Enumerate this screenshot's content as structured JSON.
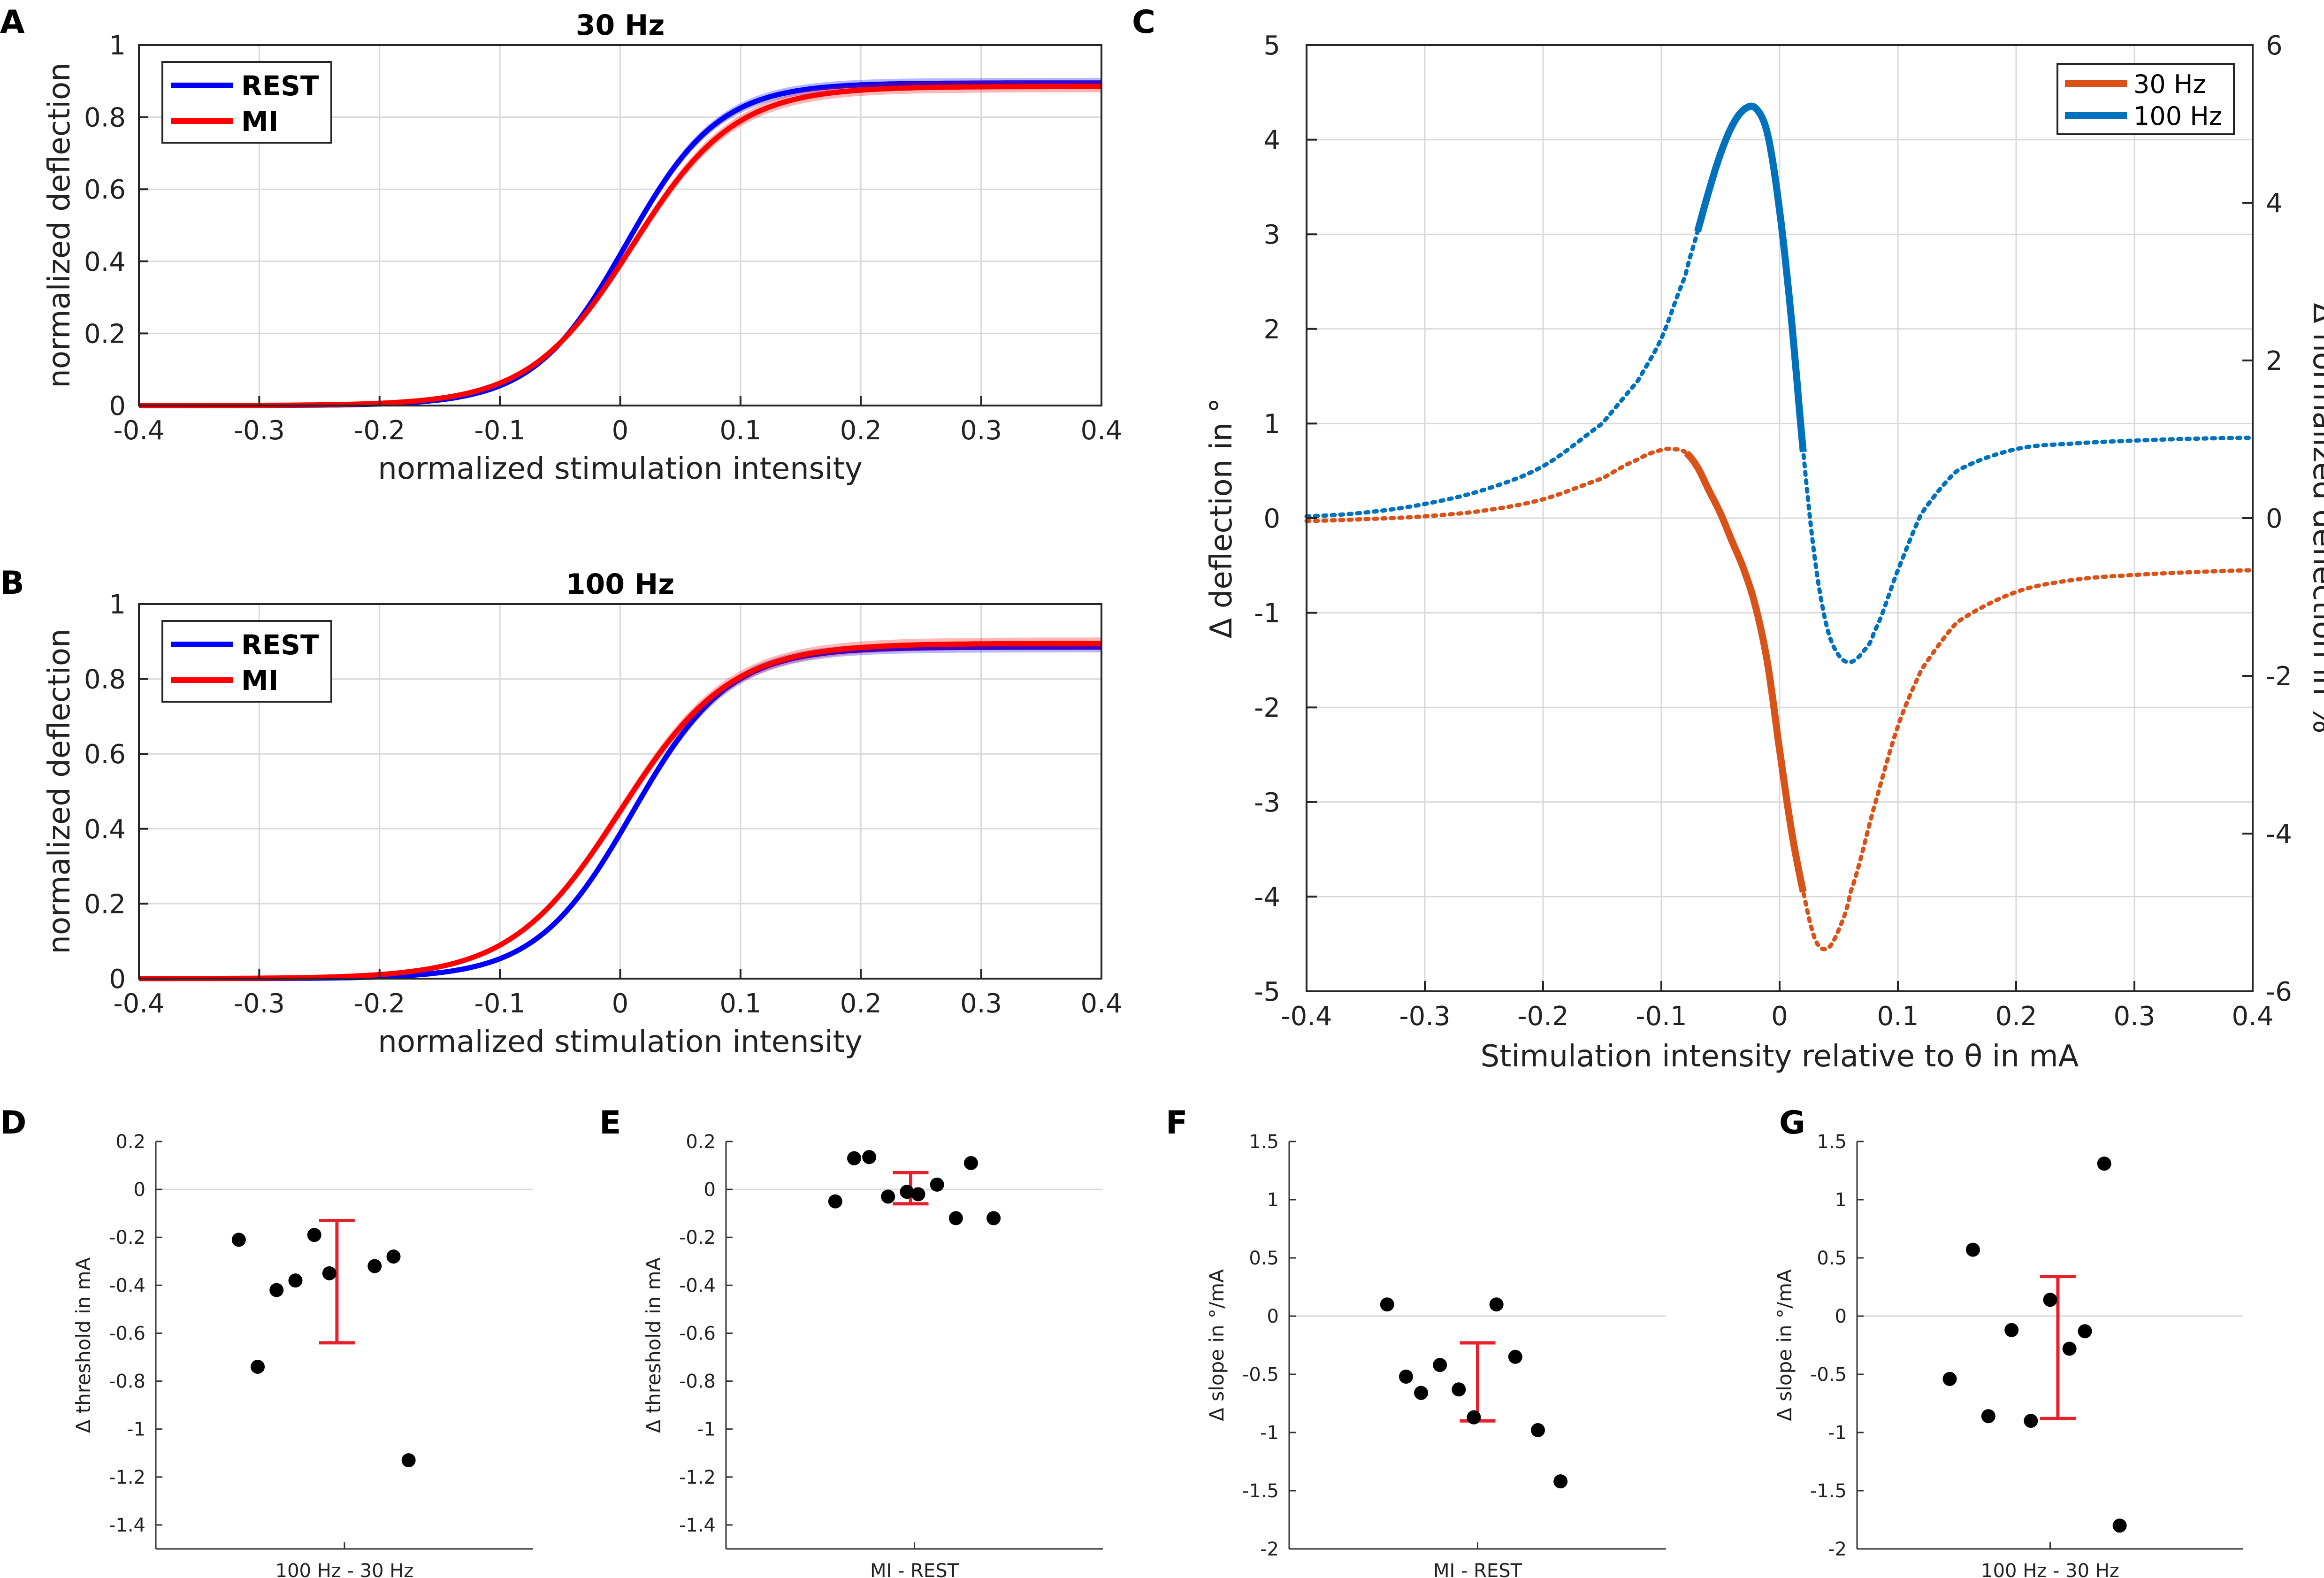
{
  "colors": {
    "rest": "#0000ff",
    "mi": "#ff0000",
    "hz30": "#d95319",
    "hz100": "#0072bd",
    "errorbar": "#e8202a",
    "dot": "#000000",
    "grid": "#d9d9d9"
  },
  "chart_data": [
    {
      "id": "A",
      "panel_label": "A",
      "type": "line",
      "title": "30 Hz",
      "xlabel": "normalized stimulation intensity",
      "ylabel": "normalized deflection",
      "xlim": [
        -0.4,
        0.4
      ],
      "ylim": [
        0,
        1
      ],
      "xticks": [
        -0.4,
        -0.3,
        -0.2,
        -0.1,
        0,
        0.1,
        0.2,
        0.3,
        0.4
      ],
      "xtick_labels": [
        "-0.4",
        "-0.3",
        "-0.2",
        "-0.1",
        "0",
        "0.1",
        "0.2",
        "0.3",
        "0.4"
      ],
      "yticks": [
        0,
        0.2,
        0.4,
        0.6,
        0.8,
        1
      ],
      "ytick_labels": [
        "0",
        "0.2",
        "0.4",
        "0.6",
        "0.8",
        "1"
      ],
      "legend": [
        "REST",
        "MI"
      ],
      "legend_position": "top-left",
      "series": [
        {
          "name": "REST",
          "color": "#0000ff",
          "model": "logistic",
          "top": 0.895,
          "midpoint": 0.005,
          "slope": 26.0,
          "band": 0.014
        },
        {
          "name": "MI",
          "color": "#ff0000",
          "model": "logistic",
          "top": 0.885,
          "midpoint": 0.01,
          "slope": 23.5,
          "band": 0.016
        }
      ]
    },
    {
      "id": "B",
      "panel_label": "B",
      "type": "line",
      "title": "100 Hz",
      "xlabel": "normalized stimulation intensity",
      "ylabel": "normalized deflection",
      "xlim": [
        -0.4,
        0.4
      ],
      "ylim": [
        0,
        1
      ],
      "xticks": [
        -0.4,
        -0.3,
        -0.2,
        -0.1,
        0,
        0.1,
        0.2,
        0.3,
        0.4
      ],
      "xtick_labels": [
        "-0.4",
        "-0.3",
        "-0.2",
        "-0.1",
        "0",
        "0.1",
        "0.2",
        "0.3",
        "0.4"
      ],
      "yticks": [
        0,
        0.2,
        0.4,
        0.6,
        0.8,
        1
      ],
      "ytick_labels": [
        "0",
        "0.2",
        "0.4",
        "0.6",
        "0.8",
        "1"
      ],
      "legend": [
        "REST",
        "MI"
      ],
      "legend_position": "top-left",
      "series": [
        {
          "name": "REST",
          "color": "#0000ff",
          "model": "logistic",
          "top": 0.885,
          "midpoint": 0.01,
          "slope": 25.0,
          "band": 0.014
        },
        {
          "name": "MI",
          "color": "#ff0000",
          "model": "logistic",
          "top": 0.895,
          "midpoint": 0.0,
          "slope": 22.0,
          "band": 0.016
        }
      ]
    },
    {
      "id": "C",
      "panel_label": "C",
      "type": "line",
      "xlabel": "Stimulation intensity relative to θ in mA",
      "ylabel": "Δ deflection in °",
      "ylabel_right": "Δ normalized deflection in %",
      "xlim": [
        -0.4,
        0.4
      ],
      "ylim": [
        -5,
        5
      ],
      "ylim_right": [
        -6,
        6
      ],
      "xticks": [
        -0.4,
        -0.3,
        -0.2,
        -0.1,
        0,
        0.1,
        0.2,
        0.3,
        0.4
      ],
      "xtick_labels": [
        "-0.4",
        "-0.3",
        "-0.2",
        "-0.1",
        "0",
        "0.1",
        "0.2",
        "0.3",
        "0.4"
      ],
      "yticks": [
        -5,
        -4,
        -3,
        -2,
        -1,
        0,
        1,
        2,
        3,
        4,
        5
      ],
      "ytick_labels": [
        "-5",
        "-4",
        "-3",
        "-2",
        "-1",
        "0",
        "1",
        "2",
        "3",
        "4",
        "5"
      ],
      "yticks_right": [
        -6,
        -4,
        -2,
        0,
        2,
        4,
        6
      ],
      "ytick_labels_right": [
        "-6",
        "-4",
        "-2",
        "0",
        "2",
        "4",
        "6"
      ],
      "legend": [
        "30 Hz",
        "100 Hz"
      ],
      "legend_position": "top-right",
      "series": [
        {
          "name": "30 Hz",
          "color": "#d95319",
          "x": [
            -0.4,
            -0.35,
            -0.3,
            -0.25,
            -0.2,
            -0.15,
            -0.12,
            -0.1,
            -0.09,
            -0.08,
            -0.07,
            -0.06,
            -0.05,
            -0.04,
            -0.03,
            -0.02,
            -0.01,
            0.0,
            0.01,
            0.02,
            0.03,
            0.04,
            0.05,
            0.06,
            0.08,
            0.1,
            0.12,
            0.15,
            0.2,
            0.25,
            0.3,
            0.35,
            0.4
          ],
          "y": [
            -0.03,
            -0.01,
            0.02,
            0.08,
            0.2,
            0.42,
            0.62,
            0.72,
            0.73,
            0.7,
            0.55,
            0.3,
            0.05,
            -0.25,
            -0.55,
            -0.95,
            -1.55,
            -2.45,
            -3.3,
            -3.95,
            -4.45,
            -4.55,
            -4.35,
            -3.95,
            -3.05,
            -2.2,
            -1.6,
            -1.1,
            -0.78,
            -0.65,
            -0.6,
            -0.57,
            -0.55
          ],
          "solid_range": [
            -0.08,
            0.02
          ]
        },
        {
          "name": "100 Hz",
          "color": "#0072bd",
          "x": [
            -0.4,
            -0.35,
            -0.3,
            -0.25,
            -0.2,
            -0.15,
            -0.12,
            -0.1,
            -0.08,
            -0.07,
            -0.06,
            -0.05,
            -0.04,
            -0.03,
            -0.02,
            -0.01,
            0.0,
            0.01,
            0.02,
            0.03,
            0.04,
            0.05,
            0.06,
            0.07,
            0.08,
            0.1,
            0.12,
            0.15,
            0.2,
            0.25,
            0.3,
            0.35,
            0.4
          ],
          "y": [
            0.02,
            0.06,
            0.15,
            0.3,
            0.55,
            1.0,
            1.45,
            1.9,
            2.55,
            3.0,
            3.45,
            3.85,
            4.15,
            4.32,
            4.33,
            4.05,
            3.25,
            2.1,
            0.7,
            -0.45,
            -1.15,
            -1.45,
            -1.52,
            -1.42,
            -1.2,
            -0.55,
            0.05,
            0.5,
            0.73,
            0.79,
            0.82,
            0.84,
            0.85
          ],
          "solid_range": [
            -0.07,
            0.02
          ]
        }
      ]
    },
    {
      "id": "D",
      "panel_label": "D",
      "type": "scatter",
      "ylabel": "Δ threshold in mA",
      "xtick_label": "100 Hz - 30 Hz",
      "ylim": [
        -1.5,
        0.2
      ],
      "yticks": [
        0.2,
        0,
        -0.2,
        -0.4,
        -0.6,
        -0.8,
        -1,
        -1.2,
        -1.4
      ],
      "ytick_labels": [
        "0.2",
        "0",
        "-0.2",
        "-0.4",
        "-0.6",
        "-0.8",
        "-1",
        "-1.2",
        "-1.4"
      ],
      "xrange": [
        0,
        1
      ],
      "zero_line": true,
      "points": [
        {
          "x": 0.22,
          "y": -0.21
        },
        {
          "x": 0.27,
          "y": -0.74
        },
        {
          "x": 0.32,
          "y": -0.42
        },
        {
          "x": 0.37,
          "y": -0.38
        },
        {
          "x": 0.42,
          "y": -0.19
        },
        {
          "x": 0.46,
          "y": -0.35
        },
        {
          "x": 0.58,
          "y": -0.32
        },
        {
          "x": 0.63,
          "y": -0.28
        },
        {
          "x": 0.67,
          "y": -1.13
        }
      ],
      "errorbar": {
        "x": 0.48,
        "low": -0.64,
        "high": -0.13
      }
    },
    {
      "id": "E",
      "panel_label": "E",
      "type": "scatter",
      "ylabel": "Δ threshold in mA",
      "xtick_label": "MI - REST",
      "ylim": [
        -1.5,
        0.2
      ],
      "yticks": [
        0.2,
        0,
        -0.2,
        -0.4,
        -0.6,
        -0.8,
        -1,
        -1.2,
        -1.4
      ],
      "ytick_labels": [
        "0.2",
        "0",
        "-0.2",
        "-0.4",
        "-0.6",
        "-0.8",
        "-1",
        "-1.2",
        "-1.4"
      ],
      "xrange": [
        0,
        1
      ],
      "zero_line": true,
      "points": [
        {
          "x": 0.29,
          "y": -0.05
        },
        {
          "x": 0.34,
          "y": 0.13
        },
        {
          "x": 0.38,
          "y": 0.135
        },
        {
          "x": 0.43,
          "y": -0.03
        },
        {
          "x": 0.48,
          "y": -0.01
        },
        {
          "x": 0.51,
          "y": -0.02
        },
        {
          "x": 0.56,
          "y": 0.02
        },
        {
          "x": 0.61,
          "y": -0.12
        },
        {
          "x": 0.65,
          "y": 0.11
        },
        {
          "x": 0.71,
          "y": -0.12
        }
      ],
      "errorbar": {
        "x": 0.49,
        "low": -0.06,
        "high": 0.07
      }
    },
    {
      "id": "F",
      "panel_label": "F",
      "type": "scatter",
      "ylabel": "Δ slope in °/mA",
      "xtick_label": "MI - REST",
      "ylim": [
        -2,
        1.5
      ],
      "yticks": [
        1.5,
        1,
        0.5,
        0,
        -0.5,
        -1,
        -1.5,
        -2
      ],
      "ytick_labels": [
        "1.5",
        "1",
        "0.5",
        "0",
        "-0.5",
        "-1",
        "-1.5",
        "-2"
      ],
      "xrange": [
        0,
        1
      ],
      "zero_line": true,
      "points": [
        {
          "x": 0.26,
          "y": 0.1
        },
        {
          "x": 0.31,
          "y": -0.52
        },
        {
          "x": 0.35,
          "y": -0.66
        },
        {
          "x": 0.4,
          "y": -0.42
        },
        {
          "x": 0.45,
          "y": -0.63
        },
        {
          "x": 0.49,
          "y": -0.87
        },
        {
          "x": 0.55,
          "y": 0.1
        },
        {
          "x": 0.6,
          "y": -0.35
        },
        {
          "x": 0.66,
          "y": -0.98
        },
        {
          "x": 0.72,
          "y": -1.42
        }
      ],
      "errorbar": {
        "x": 0.5,
        "low": -0.9,
        "high": -0.23
      }
    },
    {
      "id": "G",
      "panel_label": "G",
      "type": "scatter",
      "ylabel": "Δ slope in °/mA",
      "xtick_label": "100 Hz - 30 Hz",
      "ylim": [
        -2,
        1.5
      ],
      "yticks": [
        1.5,
        1,
        0.5,
        0,
        -0.5,
        -1,
        -1.5,
        -2
      ],
      "ytick_labels": [
        "1.5",
        "1",
        "0.5",
        "0",
        "-0.5",
        "-1",
        "-1.5",
        "-2"
      ],
      "xrange": [
        0,
        1
      ],
      "zero_line": true,
      "points": [
        {
          "x": 0.24,
          "y": -0.54
        },
        {
          "x": 0.3,
          "y": 0.57
        },
        {
          "x": 0.34,
          "y": -0.86
        },
        {
          "x": 0.4,
          "y": -0.12
        },
        {
          "x": 0.45,
          "y": -0.9
        },
        {
          "x": 0.5,
          "y": 0.14
        },
        {
          "x": 0.55,
          "y": -0.28
        },
        {
          "x": 0.59,
          "y": -0.13
        },
        {
          "x": 0.64,
          "y": 1.31
        },
        {
          "x": 0.68,
          "y": -1.8
        }
      ],
      "errorbar": {
        "x": 0.52,
        "low": -0.88,
        "high": 0.34
      }
    }
  ]
}
